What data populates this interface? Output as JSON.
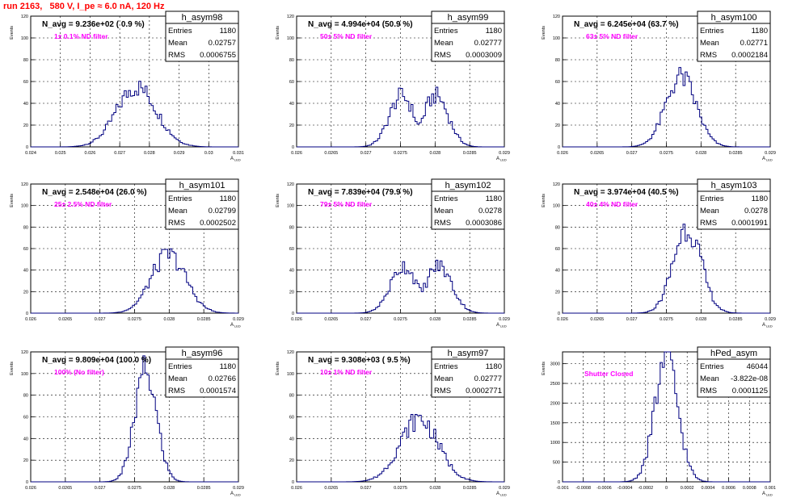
{
  "run_title": "run 2163,   580 V, I_pe ≈ 6.0 nA, 120 Hz",
  "y_axis_label": "Events",
  "x_axis_label": "A",
  "x_axis_label_sub": "LED",
  "stats_labels": {
    "entries": "Entries",
    "mean": "Mean",
    "rms": "RMS"
  },
  "colors": {
    "histogram": "#000080",
    "annotation": "#ff00ff",
    "run_title": "#ff0000",
    "grid": "#000000"
  },
  "chart_data": [
    {
      "type": "bar",
      "name": "h_asym98",
      "headline": "N_avg = 9.236e+02 ( 0.9 %)",
      "filter": "1± 0.1% ND filter",
      "entries": "1180",
      "mean": "0.02757",
      "rms": "0.0006755",
      "xlim": [
        0.024,
        0.031
      ],
      "ylim": [
        0,
        120
      ],
      "xticks": [
        0.024,
        0.025,
        0.026,
        0.027,
        0.028,
        0.029,
        0.03,
        0.031
      ],
      "xtick_labels": [
        "0.024",
        "0.025",
        "0.026",
        "0.027",
        "0.028",
        "0.029",
        "0.03",
        "0.031"
      ],
      "yticks": [
        0,
        20,
        40,
        60,
        80,
        100,
        120
      ],
      "ytick_labels": [
        "0",
        "20",
        "40",
        "60",
        "80",
        "100",
        "120"
      ],
      "shape": {
        "type": "gauss",
        "mu": 0.02757,
        "sigma": 0.0006755,
        "peak": 55
      }
    },
    {
      "type": "bar",
      "name": "h_asym99",
      "headline": "N_avg = 4.994e+04 (50.9 %)",
      "filter": "50± 5% ND filter",
      "entries": "1180",
      "mean": "0.02777",
      "rms": "0.0003009",
      "xlim": [
        0.026,
        0.029
      ],
      "ylim": [
        0,
        120
      ],
      "xticks": [
        0.026,
        0.0265,
        0.027,
        0.0275,
        0.028,
        0.0285,
        0.029
      ],
      "xtick_labels": [
        "0.026",
        "0.0265",
        "0.027",
        "0.0275",
        "0.028",
        "0.0285",
        "0.029"
      ],
      "yticks": [
        0,
        20,
        40,
        60,
        80,
        100,
        120
      ],
      "ytick_labels": [
        "0",
        "20",
        "40",
        "60",
        "80",
        "100",
        "120"
      ],
      "shape": {
        "type": "double",
        "mu1": 0.02752,
        "mu2": 0.02801,
        "sigma": 0.00018,
        "peak": 47
      }
    },
    {
      "type": "bar",
      "name": "h_asym100",
      "headline": "N_avg = 6.245e+04 (63.7 %)",
      "filter": "63± 5% ND filter",
      "entries": "1180",
      "mean": "0.02771",
      "rms": "0.0002184",
      "xlim": [
        0.026,
        0.029
      ],
      "ylim": [
        0,
        120
      ],
      "xticks": [
        0.026,
        0.0265,
        0.027,
        0.0275,
        0.028,
        0.0285,
        0.029
      ],
      "xtick_labels": [
        "0.026",
        "0.0265",
        "0.027",
        "0.0275",
        "0.028",
        "0.0285",
        "0.029"
      ],
      "yticks": [
        0,
        20,
        40,
        60,
        80,
        100,
        120
      ],
      "ytick_labels": [
        "0",
        "20",
        "40",
        "60",
        "80",
        "100",
        "120"
      ],
      "shape": {
        "type": "gauss",
        "mu": 0.02771,
        "sigma": 0.0002184,
        "peak": 64
      }
    },
    {
      "type": "bar",
      "name": "h_asym101",
      "headline": "N_avg = 2.548e+04 (26.0 %)",
      "filter": "25± 2.5% ND filter",
      "entries": "1180",
      "mean": "0.02799",
      "rms": "0.0002502",
      "xlim": [
        0.026,
        0.029
      ],
      "ylim": [
        0,
        120
      ],
      "xticks": [
        0.026,
        0.0265,
        0.027,
        0.0275,
        0.028,
        0.0285,
        0.029
      ],
      "xtick_labels": [
        "0.026",
        "0.0265",
        "0.027",
        "0.0275",
        "0.028",
        "0.0285",
        "0.029"
      ],
      "yticks": [
        0,
        20,
        40,
        60,
        80,
        100,
        120
      ],
      "ytick_labels": [
        "0",
        "20",
        "40",
        "60",
        "80",
        "100",
        "120"
      ],
      "shape": {
        "type": "gauss",
        "mu": 0.02799,
        "sigma": 0.0002502,
        "peak": 54
      }
    },
    {
      "type": "bar",
      "name": "h_asym102",
      "headline": "N_avg = 7.839e+04 (79.9 %)",
      "filter": "79± 5% ND filter",
      "entries": "1180",
      "mean": "0.0278",
      "rms": "0.0003086",
      "xlim": [
        0.026,
        0.029
      ],
      "ylim": [
        0,
        120
      ],
      "xticks": [
        0.026,
        0.0265,
        0.027,
        0.0275,
        0.028,
        0.0285,
        0.029
      ],
      "xtick_labels": [
        "0.026",
        "0.0265",
        "0.027",
        "0.0275",
        "0.028",
        "0.0285",
        "0.029"
      ],
      "yticks": [
        0,
        20,
        40,
        60,
        80,
        100,
        120
      ],
      "ytick_labels": [
        "0",
        "20",
        "40",
        "60",
        "80",
        "100",
        "120"
      ],
      "shape": {
        "type": "double",
        "mu1": 0.02755,
        "mu2": 0.02805,
        "sigma": 0.00019,
        "peak": 44
      }
    },
    {
      "type": "bar",
      "name": "h_asym103",
      "headline": "N_avg = 3.974e+04 (40.5 %)",
      "filter": "40± 4% ND filter",
      "entries": "1180",
      "mean": "0.0278",
      "rms": "0.0001991",
      "xlim": [
        0.026,
        0.029
      ],
      "ylim": [
        0,
        120
      ],
      "xticks": [
        0.026,
        0.0265,
        0.027,
        0.0275,
        0.028,
        0.0285,
        0.029
      ],
      "xtick_labels": [
        "0.026",
        "0.0265",
        "0.027",
        "0.0275",
        "0.028",
        "0.0285",
        "0.029"
      ],
      "yticks": [
        0,
        20,
        40,
        60,
        80,
        100,
        120
      ],
      "ytick_labels": [
        "0",
        "20",
        "40",
        "60",
        "80",
        "100",
        "120"
      ],
      "shape": {
        "type": "gauss",
        "mu": 0.0278,
        "sigma": 0.0001991,
        "peak": 80
      }
    },
    {
      "type": "bar",
      "name": "h_asym96",
      "headline": "N_avg = 9.809e+04 (100.0 %)",
      "filter": "100% (No filter)",
      "entries": "1180",
      "mean": "0.02766",
      "rms": "0.0001574",
      "xlim": [
        0.026,
        0.029
      ],
      "ylim": [
        0,
        120
      ],
      "xticks": [
        0.026,
        0.0265,
        0.027,
        0.0275,
        0.028,
        0.0285,
        0.029
      ],
      "xtick_labels": [
        "0.026",
        "0.0265",
        "0.027",
        "0.0275",
        "0.028",
        "0.0285",
        "0.029"
      ],
      "yticks": [
        0,
        20,
        40,
        60,
        80,
        100,
        120
      ],
      "ytick_labels": [
        "0",
        "20",
        "40",
        "60",
        "80",
        "100",
        "120"
      ],
      "shape": {
        "type": "gauss",
        "mu": 0.02766,
        "sigma": 0.0001574,
        "peak": 102
      }
    },
    {
      "type": "bar",
      "name": "h_asym97",
      "headline": "N_avg = 9.308e+03 ( 9.5 %)",
      "filter": "10± 1% ND filter",
      "entries": "1180",
      "mean": "0.02777",
      "rms": "0.0002771",
      "xlim": [
        0.026,
        0.029
      ],
      "ylim": [
        0,
        120
      ],
      "xticks": [
        0.026,
        0.0265,
        0.027,
        0.0275,
        0.028,
        0.0285,
        0.029
      ],
      "xtick_labels": [
        "0.026",
        "0.0265",
        "0.027",
        "0.0275",
        "0.028",
        "0.0285",
        "0.029"
      ],
      "yticks": [
        0,
        20,
        40,
        60,
        80,
        100,
        120
      ],
      "ytick_labels": [
        "0",
        "20",
        "40",
        "60",
        "80",
        "100",
        "120"
      ],
      "shape": {
        "type": "gauss",
        "mu": 0.02777,
        "sigma": 0.0002771,
        "peak": 58
      }
    },
    {
      "type": "bar",
      "name": "hPed_asym",
      "headline": "",
      "filter": "Shutter Closed",
      "entries": "46044",
      "mean": "-3.822e-08",
      "rms": "0.0001125",
      "xlim": [
        -0.001,
        0.001
      ],
      "ylim": [
        0,
        3300
      ],
      "xticks": [
        -0.001,
        -0.0008,
        -0.0006,
        -0.0004,
        -0.0002,
        0,
        0.0002,
        0.0004,
        0.0006,
        0.0008,
        0.001
      ],
      "xtick_labels": [
        "-0.001",
        "-0.0008",
        "-0.0006",
        "-0.0004",
        "-0.0002",
        "0",
        "0.0002",
        "0.0004",
        "0.0006",
        "0.0008",
        "0.001"
      ],
      "yticks": [
        0,
        500,
        1000,
        1500,
        2000,
        2500,
        3000
      ],
      "ytick_labels": [
        "0",
        "500",
        "1000",
        "1500",
        "2000",
        "2500",
        "3000"
      ],
      "shape": {
        "type": "gauss",
        "mu": 0,
        "sigma": 0.0001125,
        "peak": 3100
      }
    }
  ]
}
